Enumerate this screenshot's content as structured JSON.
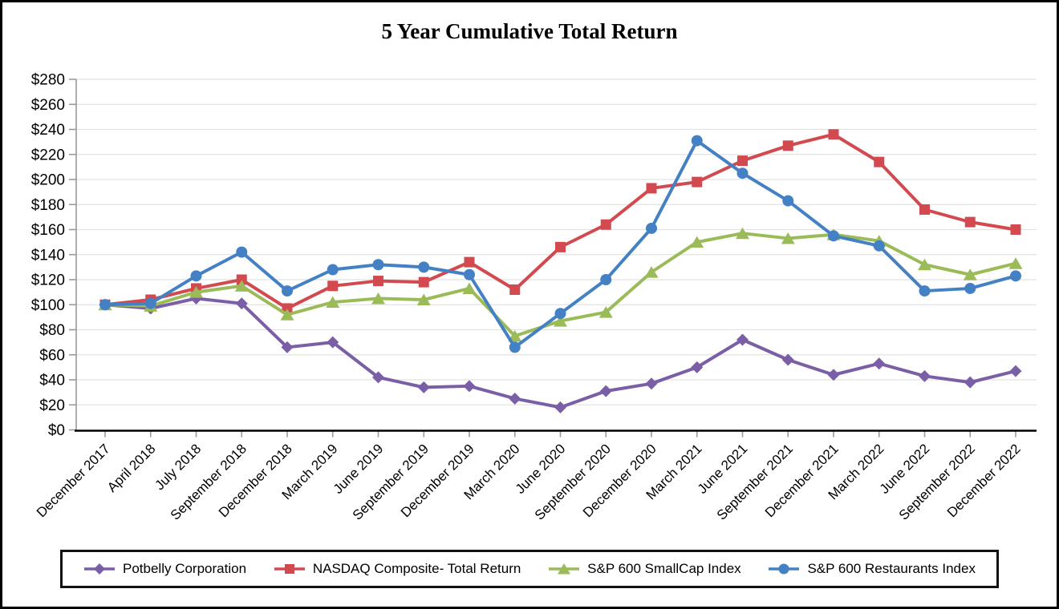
{
  "chart_data": {
    "type": "line",
    "title": "5 Year Cumulative Total Return",
    "legend_position": "bottom",
    "grid": "horizontal",
    "y_axis": {
      "prefix": "$",
      "min": 0,
      "max": 280,
      "step": 20,
      "tick_labels": [
        "$0",
        "$20",
        "$40",
        "$60",
        "$80",
        "$100",
        "$120",
        "$140",
        "$160",
        "$180",
        "$200",
        "$220",
        "$240",
        "$260",
        "$280"
      ]
    },
    "categories": [
      "December 2017",
      "April 2018",
      "July 2018",
      "September 2018",
      "December 2018",
      "March 2019",
      "June 2019",
      "September 2019",
      "December 2019",
      "March 2020",
      "June 2020",
      "September 2020",
      "December 2020",
      "March 2021",
      "June 2021",
      "September 2021",
      "December 2021",
      "March 2022",
      "June 2022",
      "September 2022",
      "December 2022"
    ],
    "series": [
      {
        "name": "Potbelly Corporation",
        "marker": "diamond",
        "color": "#7A5FA6",
        "values": [
          100,
          97,
          105,
          101,
          66,
          70,
          42,
          34,
          35,
          25,
          18,
          31,
          37,
          50,
          72,
          56,
          44,
          53,
          43,
          38,
          47
        ]
      },
      {
        "name": "NASDAQ Composite- Total Return",
        "marker": "square",
        "color": "#D2494F",
        "values": [
          100,
          104,
          113,
          120,
          97,
          115,
          119,
          118,
          134,
          112,
          146,
          164,
          193,
          198,
          215,
          227,
          236,
          214,
          176,
          166,
          160
        ]
      },
      {
        "name": "S&P 600 SmallCap Index",
        "marker": "triangle",
        "color": "#9BBB59",
        "values": [
          100,
          99,
          110,
          115,
          92,
          102,
          105,
          104,
          113,
          75,
          87,
          94,
          126,
          150,
          157,
          153,
          156,
          151,
          132,
          124,
          133
        ]
      },
      {
        "name": "S&P 600 Restaurants Index",
        "marker": "circle",
        "color": "#4480C4",
        "values": [
          100,
          101,
          123,
          142,
          111,
          128,
          132,
          130,
          124,
          66,
          93,
          120,
          161,
          231,
          205,
          183,
          155,
          147,
          111,
          113,
          123
        ]
      }
    ],
    "axis_color": "#9A9A9A",
    "gridline_color": "#E2E2E2"
  }
}
